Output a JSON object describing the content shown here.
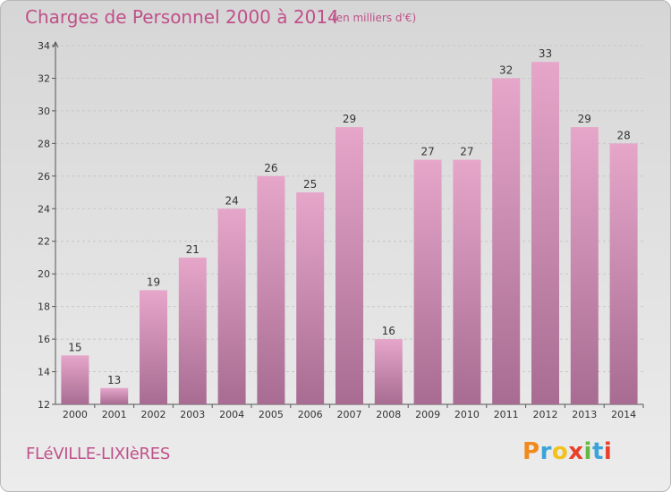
{
  "header": {
    "title": "Charges de Personnel 2000 à 2014",
    "subtitle": "(en milliers d'€)"
  },
  "footer": {
    "commune": "FLéVILLE-LIXIèRES",
    "logo_text": "Proxiti",
    "logo_colors": [
      "#f08a1c",
      "#3aa3d8",
      "#f2c21b",
      "#e8402a",
      "#65b844",
      "#3aa3d8",
      "#e8402a"
    ]
  },
  "chart_data": {
    "type": "bar",
    "title": "Charges de Personnel 2000 à 2014",
    "subtitle": "(en milliers d'€)",
    "xlabel": "",
    "ylabel": "",
    "categories": [
      "2000",
      "2001",
      "2002",
      "2003",
      "2004",
      "2005",
      "2006",
      "2007",
      "2008",
      "2009",
      "2010",
      "2011",
      "2012",
      "2013",
      "2014"
    ],
    "values": [
      15,
      13,
      19,
      21,
      24,
      26,
      25,
      29,
      16,
      27,
      27,
      32,
      33,
      29,
      28
    ],
    "ylim": [
      12,
      34
    ],
    "yticks": [
      12,
      14,
      16,
      18,
      20,
      22,
      24,
      26,
      28,
      30,
      32,
      34
    ],
    "grid": true,
    "bar_color": "#d88ab4"
  }
}
